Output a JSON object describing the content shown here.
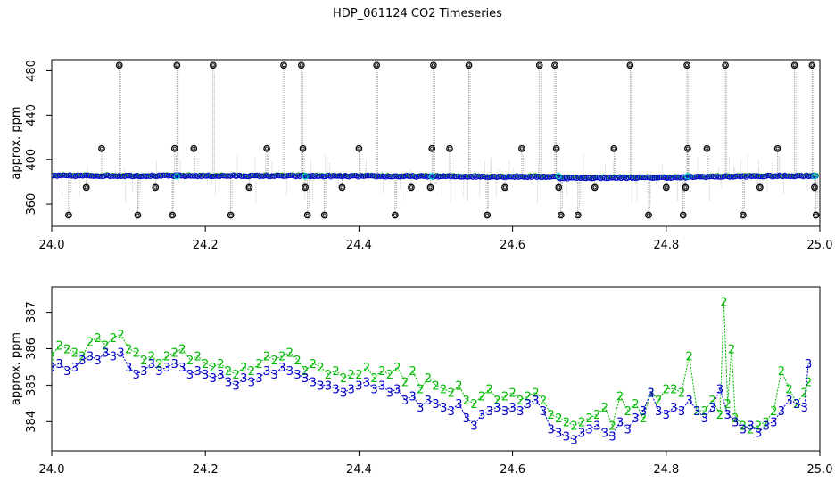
{
  "title": "HDP_061124  CO2 Timeseries",
  "colors": {
    "raw": "#8c8c8c",
    "outlier": "#000000",
    "series3": "#0000cc",
    "series2": "#00bb00",
    "cyan": "#00cccc"
  },
  "chart_data": [
    {
      "type": "scatter",
      "title": "HDP_061124  CO2 Timeseries",
      "xlabel": "",
      "ylabel": "approx. ppm",
      "xlim": [
        24.0,
        25.0
      ],
      "ylim": [
        340,
        490
      ],
      "xticks": [
        "24.0",
        "24.2",
        "24.4",
        "24.6",
        "24.8",
        "25.0"
      ],
      "yticks": [
        "360",
        "400",
        "440",
        "480"
      ],
      "grid": false,
      "baseline_segments": [
        {
          "x0": 24.0,
          "x1": 24.33,
          "y0": 385.5,
          "y1": 385.3
        },
        {
          "x0": 24.33,
          "x1": 24.66,
          "y0": 385.2,
          "y1": 384.6
        },
        {
          "x0": 24.66,
          "x1": 24.83,
          "y0": 383.5,
          "y1": 384.0
        },
        {
          "x0": 24.83,
          "x1": 24.995,
          "y0": 384.5,
          "y1": 385.5
        }
      ],
      "outlier_markers": [
        {
          "x": 24.022,
          "y": 350
        },
        {
          "x": 24.045,
          "y": 375
        },
        {
          "x": 24.065,
          "y": 410
        },
        {
          "x": 24.088,
          "y": 485
        },
        {
          "x": 24.112,
          "y": 350
        },
        {
          "x": 24.135,
          "y": 375
        },
        {
          "x": 24.157,
          "y": 350
        },
        {
          "x": 24.16,
          "y": 410
        },
        {
          "x": 24.163,
          "y": 485
        },
        {
          "x": 24.185,
          "y": 410
        },
        {
          "x": 24.21,
          "y": 485
        },
        {
          "x": 24.233,
          "y": 350
        },
        {
          "x": 24.257,
          "y": 375
        },
        {
          "x": 24.28,
          "y": 410
        },
        {
          "x": 24.302,
          "y": 485
        },
        {
          "x": 24.325,
          "y": 485
        },
        {
          "x": 24.327,
          "y": 410
        },
        {
          "x": 24.33,
          "y": 375
        },
        {
          "x": 24.333,
          "y": 350
        },
        {
          "x": 24.355,
          "y": 350
        },
        {
          "x": 24.378,
          "y": 375
        },
        {
          "x": 24.4,
          "y": 410
        },
        {
          "x": 24.423,
          "y": 485
        },
        {
          "x": 24.447,
          "y": 350
        },
        {
          "x": 24.468,
          "y": 375
        },
        {
          "x": 24.493,
          "y": 375
        },
        {
          "x": 24.495,
          "y": 410
        },
        {
          "x": 24.497,
          "y": 485
        },
        {
          "x": 24.518,
          "y": 410
        },
        {
          "x": 24.543,
          "y": 485
        },
        {
          "x": 24.567,
          "y": 350
        },
        {
          "x": 24.59,
          "y": 375
        },
        {
          "x": 24.612,
          "y": 410
        },
        {
          "x": 24.635,
          "y": 485
        },
        {
          "x": 24.655,
          "y": 485
        },
        {
          "x": 24.657,
          "y": 410
        },
        {
          "x": 24.66,
          "y": 375
        },
        {
          "x": 24.663,
          "y": 350
        },
        {
          "x": 24.685,
          "y": 350
        },
        {
          "x": 24.707,
          "y": 375
        },
        {
          "x": 24.732,
          "y": 410
        },
        {
          "x": 24.753,
          "y": 485
        },
        {
          "x": 24.777,
          "y": 350
        },
        {
          "x": 24.8,
          "y": 375
        },
        {
          "x": 24.822,
          "y": 350
        },
        {
          "x": 24.825,
          "y": 375
        },
        {
          "x": 24.827,
          "y": 485
        },
        {
          "x": 24.828,
          "y": 410
        },
        {
          "x": 24.853,
          "y": 410
        },
        {
          "x": 24.877,
          "y": 485
        },
        {
          "x": 24.9,
          "y": 350
        },
        {
          "x": 24.922,
          "y": 375
        },
        {
          "x": 24.945,
          "y": 410
        },
        {
          "x": 24.967,
          "y": 485
        },
        {
          "x": 24.99,
          "y": 485
        },
        {
          "x": 24.993,
          "y": 375
        },
        {
          "x": 24.995,
          "y": 350
        }
      ]
    },
    {
      "type": "scatter",
      "xlabel": "",
      "ylabel": "approx. ppm",
      "xlim": [
        24.0,
        25.0
      ],
      "ylim": [
        383.2,
        387.7
      ],
      "xticks": [
        "24.0",
        "24.2",
        "24.4",
        "24.6",
        "24.8",
        "25.0"
      ],
      "yticks": [
        "384",
        "385",
        "386",
        "387"
      ],
      "grid": false,
      "series": [
        {
          "marker": "2",
          "x": [
            24.0,
            24.01,
            24.02,
            24.03,
            24.04,
            24.05,
            24.06,
            24.07,
            24.08,
            24.09,
            24.1,
            24.11,
            24.12,
            24.13,
            24.14,
            24.15,
            24.16,
            24.17,
            24.18,
            24.19,
            24.2,
            24.21,
            24.22,
            24.23,
            24.24,
            24.25,
            24.26,
            24.27,
            24.28,
            24.29,
            24.3,
            24.31,
            24.32,
            24.33,
            24.34,
            24.35,
            24.36,
            24.37,
            24.38,
            24.39,
            24.4,
            24.41,
            24.42,
            24.43,
            24.44,
            24.45,
            24.46,
            24.47,
            24.48,
            24.49,
            24.5,
            24.51,
            24.52,
            24.53,
            24.54,
            24.55,
            24.56,
            24.57,
            24.58,
            24.59,
            24.6,
            24.61,
            24.62,
            24.63,
            24.64,
            24.65,
            24.66,
            24.67,
            24.68,
            24.69,
            24.7,
            24.71,
            24.72,
            24.73,
            24.74,
            24.75,
            24.76,
            24.77,
            24.78,
            24.79,
            24.8,
            24.81,
            24.82,
            24.83,
            24.84,
            24.85,
            24.86,
            24.87,
            24.875,
            24.88,
            24.885,
            24.89,
            24.9,
            24.91,
            24.92,
            24.93,
            24.94,
            24.95,
            24.96,
            24.97,
            24.98,
            24.985
          ],
          "values": [
            385.8,
            386.1,
            386.0,
            385.9,
            385.8,
            386.2,
            386.3,
            386.1,
            386.3,
            386.4,
            386.0,
            385.9,
            385.7,
            385.8,
            385.6,
            385.8,
            385.9,
            386.0,
            385.7,
            385.8,
            385.6,
            385.5,
            385.6,
            385.4,
            385.3,
            385.5,
            385.4,
            385.6,
            385.8,
            385.7,
            385.8,
            385.9,
            385.7,
            385.4,
            385.6,
            385.5,
            385.3,
            385.4,
            385.2,
            385.3,
            385.3,
            385.5,
            385.2,
            385.4,
            385.3,
            385.5,
            385.1,
            385.4,
            384.9,
            385.2,
            385.0,
            384.9,
            384.8,
            385.0,
            384.6,
            384.5,
            384.7,
            384.9,
            384.6,
            384.7,
            384.8,
            384.6,
            384.7,
            384.8,
            384.6,
            384.2,
            384.1,
            384.0,
            383.9,
            384.0,
            384.1,
            384.2,
            384.4,
            383.9,
            384.7,
            384.3,
            384.5,
            384.1,
            384.8,
            384.6,
            384.9,
            384.9,
            384.8,
            385.8,
            384.3,
            384.3,
            384.6,
            384.2,
            387.3,
            384.5,
            386.0,
            384.1,
            383.9,
            383.8,
            383.9,
            384.0,
            384.3,
            385.4,
            384.9,
            384.5,
            384.8,
            385.1
          ]
        },
        {
          "marker": "3",
          "x": [
            24.0,
            24.01,
            24.02,
            24.03,
            24.04,
            24.05,
            24.06,
            24.07,
            24.08,
            24.09,
            24.1,
            24.11,
            24.12,
            24.13,
            24.14,
            24.15,
            24.16,
            24.17,
            24.18,
            24.19,
            24.2,
            24.21,
            24.22,
            24.23,
            24.24,
            24.25,
            24.26,
            24.27,
            24.28,
            24.29,
            24.3,
            24.31,
            24.32,
            24.33,
            24.34,
            24.35,
            24.36,
            24.37,
            24.38,
            24.39,
            24.4,
            24.41,
            24.42,
            24.43,
            24.44,
            24.45,
            24.46,
            24.47,
            24.48,
            24.49,
            24.5,
            24.51,
            24.52,
            24.53,
            24.54,
            24.55,
            24.56,
            24.57,
            24.58,
            24.59,
            24.6,
            24.61,
            24.62,
            24.63,
            24.64,
            24.65,
            24.66,
            24.67,
            24.68,
            24.69,
            24.7,
            24.71,
            24.72,
            24.73,
            24.74,
            24.75,
            24.76,
            24.77,
            24.78,
            24.79,
            24.8,
            24.81,
            24.82,
            24.83,
            24.84,
            24.85,
            24.86,
            24.87,
            24.88,
            24.89,
            24.9,
            24.91,
            24.92,
            24.93,
            24.94,
            24.95,
            24.96,
            24.97,
            24.98,
            24.985
          ],
          "values": [
            385.5,
            385.6,
            385.4,
            385.5,
            385.7,
            385.8,
            385.7,
            385.9,
            385.8,
            385.9,
            385.5,
            385.3,
            385.4,
            385.6,
            385.4,
            385.5,
            385.6,
            385.5,
            385.3,
            385.4,
            385.3,
            385.2,
            385.3,
            385.1,
            385.0,
            385.2,
            385.1,
            385.2,
            385.4,
            385.3,
            385.5,
            385.4,
            385.3,
            385.2,
            385.1,
            385.0,
            385.0,
            384.9,
            384.8,
            384.9,
            385.0,
            385.1,
            384.9,
            385.0,
            384.8,
            384.9,
            384.6,
            384.7,
            384.4,
            384.6,
            384.5,
            384.4,
            384.3,
            384.5,
            384.1,
            383.9,
            384.2,
            384.3,
            384.4,
            384.3,
            384.4,
            384.3,
            384.5,
            384.6,
            384.3,
            383.8,
            383.7,
            383.6,
            383.5,
            383.7,
            383.8,
            383.9,
            383.7,
            383.6,
            384.0,
            383.8,
            384.1,
            384.3,
            384.8,
            384.3,
            384.2,
            384.4,
            384.3,
            384.6,
            384.3,
            384.1,
            384.4,
            384.9,
            384.2,
            384.0,
            383.8,
            383.9,
            383.7,
            383.9,
            384.0,
            384.3,
            384.6,
            384.5,
            384.4,
            385.6
          ]
        }
      ]
    }
  ]
}
